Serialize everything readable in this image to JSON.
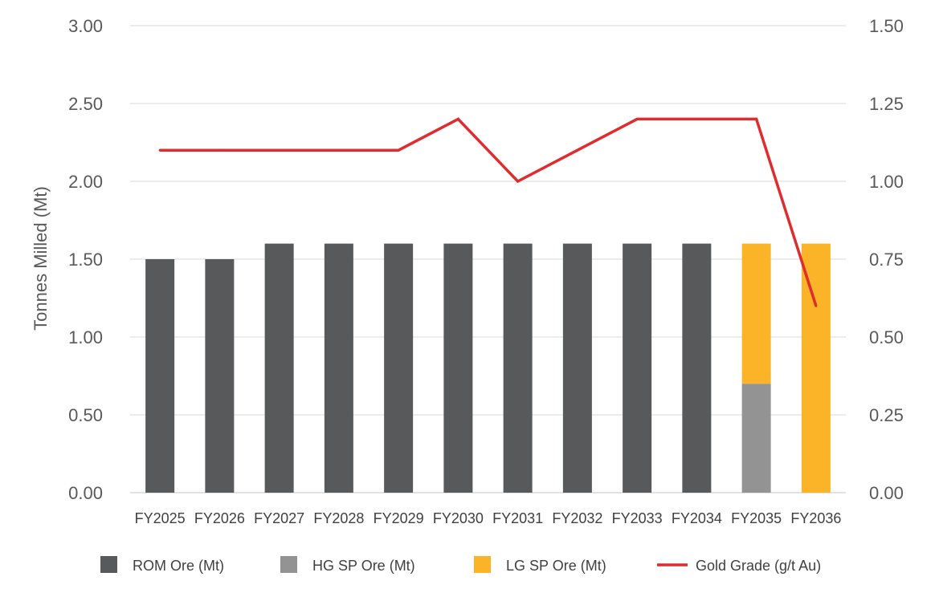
{
  "chart_data": {
    "type": "bar",
    "title": "",
    "xlabel": "",
    "ylabel": "Tonnes Milled (Mt)",
    "y2label": "",
    "categories": [
      "FY2025",
      "FY2026",
      "FY2027",
      "FY2028",
      "FY2029",
      "FY2030",
      "FY2031",
      "FY2032",
      "FY2033",
      "FY2034",
      "FY2035",
      "FY2036"
    ],
    "ylim": [
      0,
      3.0
    ],
    "y2lim": [
      0,
      1.5
    ],
    "yticks": [
      "0.00",
      "0.50",
      "1.00",
      "1.50",
      "2.00",
      "2.50",
      "3.00"
    ],
    "y2ticks": [
      "0.00",
      "0.25",
      "0.50",
      "0.75",
      "1.00",
      "1.25",
      "1.50"
    ],
    "grid": true,
    "stacked": true,
    "legend_position": "bottom",
    "series": [
      {
        "name": "ROM Ore (Mt)",
        "kind": "bar",
        "axis": "left",
        "color": "#58595b",
        "values": [
          1.5,
          1.5,
          1.6,
          1.6,
          1.6,
          1.6,
          1.6,
          1.6,
          1.6,
          1.6,
          0,
          0
        ]
      },
      {
        "name": "HG SP Ore (Mt)",
        "kind": "bar",
        "axis": "left",
        "color": "#939393",
        "values": [
          0,
          0,
          0,
          0,
          0,
          0,
          0,
          0,
          0,
          0,
          0.7,
          0
        ]
      },
      {
        "name": "LG SP Ore (Mt)",
        "kind": "bar",
        "axis": "left",
        "color": "#fbb427",
        "values": [
          0,
          0,
          0,
          0,
          0,
          0,
          0,
          0,
          0,
          0,
          0.9,
          1.6
        ]
      },
      {
        "name": "Gold Grade (g/t Au)",
        "kind": "line",
        "axis": "right",
        "color": "#e02b2f",
        "values": [
          1.1,
          1.1,
          1.1,
          1.1,
          1.1,
          1.2,
          1.0,
          1.1,
          1.2,
          1.2,
          1.2,
          0.6
        ]
      }
    ]
  }
}
